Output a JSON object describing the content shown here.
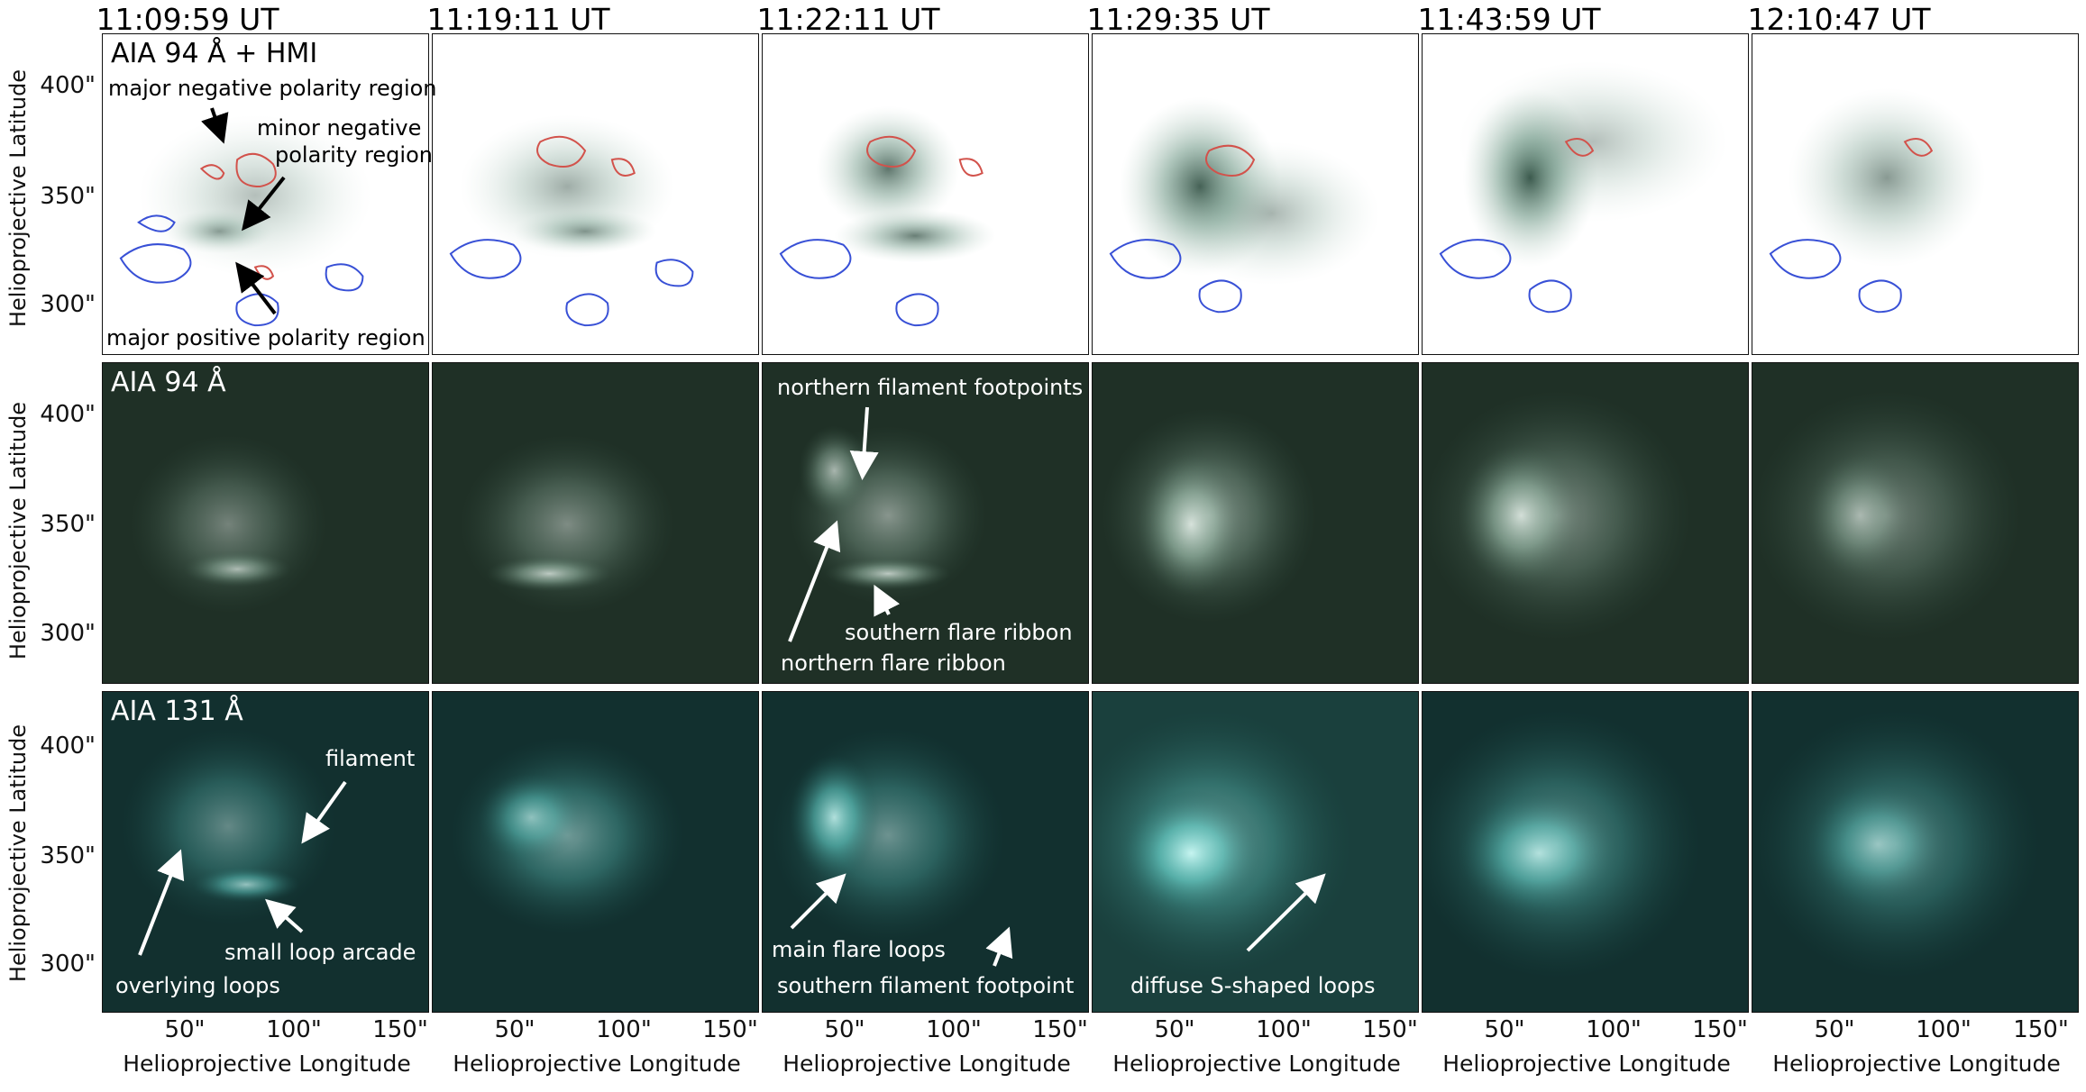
{
  "column_titles": [
    "11:09:59 UT",
    "11:19:11 UT",
    "11:22:11 UT",
    "11:29:35 UT",
    "11:43:59 UT",
    "12:10:47 UT"
  ],
  "rows": [
    {
      "title": "AIA 94 Å + HMI",
      "ylabel": "Helioprojective Latitude"
    },
    {
      "title": "AIA 94 Å",
      "ylabel": "Helioprojective Latitude"
    },
    {
      "title": "AIA 131 Å",
      "ylabel": "Helioprojective Latitude"
    }
  ],
  "y_ticks": [
    "400\"",
    "350\"",
    "300\""
  ],
  "x_ticks": [
    "50\"",
    "100\"",
    "150\""
  ],
  "xlabel": "Helioprojective Longitude",
  "annotations": {
    "major_negative": "major negative polarity region",
    "minor_negative_1": "minor negative",
    "minor_negative_2": "polarity region",
    "major_positive": "major positive polarity region",
    "northern_footpoints": "northern filament footpoints",
    "southern_ribbon": "southern flare ribbon",
    "northern_ribbon": "northern flare ribbon",
    "filament": "filament",
    "small_loop_arcade": "small loop arcade",
    "overlying_loops": "overlying loops",
    "main_flare_loops": "main flare loops",
    "southern_footpoint": "southern filament footpoint",
    "diffuse_loops": "diffuse S-shaped loops"
  },
  "colors": {
    "aia94_bg": "#1f3026",
    "aia94_bright": "#e8f2ec",
    "aia131_bg": "#12302f",
    "aia131_bright": "#b6fbf6",
    "negative_contour": "#d2524b",
    "positive_contour": "#3850d6",
    "inverted_emission": "#2f5a48"
  }
}
